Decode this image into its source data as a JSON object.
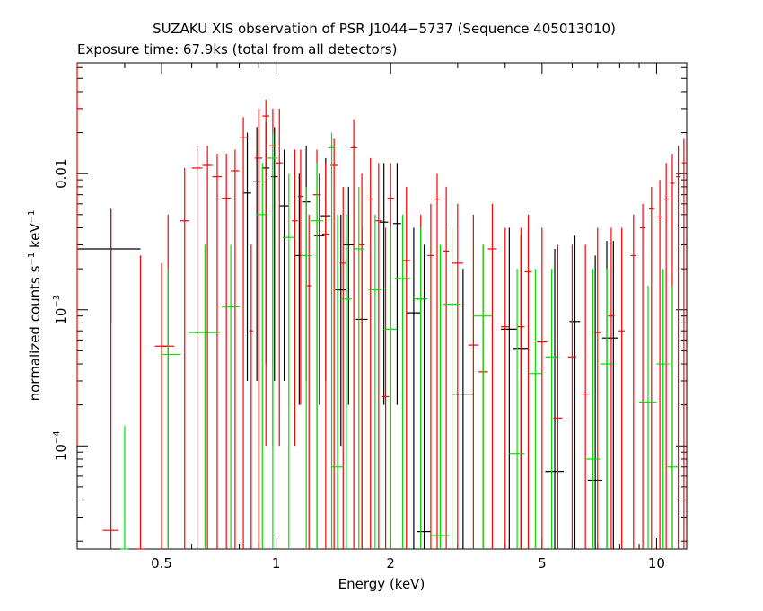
{
  "chart_data": {
    "type": "scatter",
    "title": "SUZAKU XIS observation of PSR J1044−5737 (Sequence 405013010)",
    "subtitle": "Exposure time: 67.9ks (total from all detectors)",
    "xlabel": "Energy (keV)",
    "ylabel_main": "normalized counts s",
    "ylabel_unit": "keV",
    "ylabel_exp": "−1",
    "x_scale": "log",
    "y_scale": "log",
    "xlim": [
      0.3,
      12.0
    ],
    "ylim": [
      1.75e-05,
      0.065
    ],
    "x_ticks": [
      {
        "value": 0.5,
        "label": "0.5"
      },
      {
        "value": 1,
        "label": "1"
      },
      {
        "value": 2,
        "label": "2"
      },
      {
        "value": 5,
        "label": "5"
      },
      {
        "value": 10,
        "label": "10"
      }
    ],
    "y_ticks": [
      {
        "value": 0.0001,
        "mant": "10",
        "exp": "−4"
      },
      {
        "value": 0.001,
        "mant": "10",
        "exp": "−3"
      },
      {
        "value": 0.01,
        "mant": "0.01",
        "exp": ""
      }
    ],
    "grid": false,
    "series": [
      {
        "color": "#000000",
        "points": [
          [
            0.368,
            0.0028,
            0.3,
            0.44,
            0.0008,
            0.0055
          ],
          [
            0.84,
            0.0072,
            0.82,
            0.86,
            0.0003,
            0.02
          ],
          [
            0.89,
            0.0087,
            0.87,
            0.91,
            0.0003,
            0.022
          ],
          [
            0.94,
            0.011,
            0.92,
            0.96,
            0.0004,
            0.024
          ],
          [
            0.99,
            0.0095,
            0.97,
            1.01,
            0.0003,
            0.022
          ],
          [
            1.05,
            0.0058,
            1.02,
            1.08,
            0.0003,
            0.015
          ],
          [
            1.15,
            0.0025,
            1.12,
            1.18,
            0.0002,
            0.01
          ],
          [
            1.2,
            0.0062,
            1.17,
            1.23,
            0.0003,
            0.016
          ],
          [
            1.3,
            0.0035,
            1.26,
            1.34,
            0.0002,
            0.01
          ],
          [
            1.35,
            0.0049,
            1.31,
            1.39,
            0.0003,
            0.013
          ],
          [
            1.48,
            0.0014,
            1.43,
            1.53,
            0.0001,
            0.005
          ],
          [
            1.55,
            0.003,
            1.5,
            1.6,
            0.0002,
            0.008
          ],
          [
            1.68,
            0.00085,
            1.62,
            1.74,
            1.75e-05,
            0.004
          ],
          [
            1.92,
            0.0044,
            1.87,
            1.97,
            0.0002,
            0.012
          ],
          [
            2.08,
            0.0043,
            2.03,
            2.13,
            0.0002,
            0.012
          ],
          [
            2.3,
            0.00095,
            2.2,
            2.4,
            1.75e-05,
            0.004
          ],
          [
            2.45,
            2.35e-05,
            2.35,
            2.55,
            1.75e-05,
            0.003
          ],
          [
            3.1,
            0.00024,
            2.9,
            3.3,
            1.75e-05,
            0.002
          ],
          [
            4.1,
            0.00072,
            3.9,
            4.3,
            1.75e-05,
            0.004
          ],
          [
            4.4,
            0.00052,
            4.2,
            4.6,
            1.75e-05,
            0.0035
          ],
          [
            5.4,
            6.5e-05,
            5.1,
            5.7,
            1.75e-05,
            0.0028
          ],
          [
            6.1,
            0.00082,
            5.9,
            6.3,
            1.75e-05,
            0.0035
          ],
          [
            6.9,
            5.6e-05,
            6.6,
            7.2,
            1.75e-05,
            0.0025
          ],
          [
            7.4,
            0.00062,
            7.2,
            7.6,
            1.75e-05,
            0.0032
          ],
          [
            7.7,
            0.00062,
            7.5,
            7.9,
            1.75e-05,
            0.0032
          ]
        ]
      },
      {
        "color": "#ff0000",
        "points": [
          [
            0.3,
            0.03,
            0.3,
            0.31,
            0.0001,
            0.065
          ],
          [
            0.368,
            2.4e-05,
            0.35,
            0.385,
            1.75e-05,
            0.0055
          ],
          [
            0.44,
            1.75e-05,
            0.43,
            0.45,
            1.75e-05,
            0.0025
          ],
          [
            0.5,
            0.00054,
            0.48,
            0.52,
            1.75e-05,
            0.0022
          ],
          [
            0.52,
            0.00054,
            0.5,
            0.54,
            1.75e-05,
            0.005
          ],
          [
            0.575,
            0.0045,
            0.56,
            0.59,
            1.75e-05,
            0.011
          ],
          [
            0.62,
            0.011,
            0.6,
            0.64,
            1.75e-05,
            0.016
          ],
          [
            0.66,
            0.0115,
            0.64,
            0.68,
            1.75e-05,
            0.016
          ],
          [
            0.7,
            0.0095,
            0.68,
            0.72,
            1.75e-05,
            0.014
          ],
          [
            0.74,
            0.0066,
            0.72,
            0.76,
            1.75e-05,
            0.014
          ],
          [
            0.78,
            0.0105,
            0.76,
            0.8,
            1.75e-05,
            0.015
          ],
          [
            0.82,
            0.0185,
            0.8,
            0.84,
            1.75e-05,
            0.026
          ],
          [
            0.86,
            0.0007,
            0.85,
            0.87,
            1.75e-05,
            0.003
          ],
          [
            0.9,
            0.013,
            0.88,
            0.92,
            1.75e-05,
            0.03
          ],
          [
            0.94,
            0.0265,
            0.92,
            0.96,
            0.0001,
            0.035
          ],
          [
            0.98,
            0.016,
            0.96,
            1.0,
            0.0001,
            0.03
          ],
          [
            1.02,
            0.012,
            1.0,
            1.04,
            0.0001,
            0.03
          ],
          [
            1.12,
            0.0045,
            1.1,
            1.14,
            0.0001,
            0.015
          ],
          [
            1.16,
            0.0068,
            1.14,
            1.18,
            0.0002,
            0.015
          ],
          [
            1.22,
            0.0015,
            1.2,
            1.24,
            1.75e-05,
            0.005
          ],
          [
            1.28,
            0.007,
            1.25,
            1.31,
            1.75e-05,
            0.015
          ],
          [
            1.35,
            0.0036,
            1.32,
            1.38,
            1.75e-05,
            0.012
          ],
          [
            1.42,
            0.0115,
            1.39,
            1.45,
            1.75e-05,
            0.018
          ],
          [
            1.5,
            0.0022,
            1.47,
            1.53,
            1.75e-05,
            0.008
          ],
          [
            1.6,
            0.0155,
            1.57,
            1.63,
            1.75e-05,
            0.025
          ],
          [
            1.68,
            0.003,
            1.65,
            1.71,
            1.75e-05,
            0.01
          ],
          [
            1.77,
            0.0065,
            1.74,
            1.8,
            1.75e-05,
            0.013
          ],
          [
            1.86,
            0.0045,
            1.82,
            1.9,
            1.75e-05,
            0.012
          ],
          [
            1.94,
            0.00023,
            1.9,
            1.98,
            1.75e-05,
            0.004
          ],
          [
            2.0,
            0.0066,
            1.96,
            2.04,
            1.75e-05,
            0.012
          ],
          [
            2.2,
            0.0023,
            2.15,
            2.25,
            1.75e-05,
            0.008
          ],
          [
            2.4,
            0.0012,
            2.35,
            2.45,
            1.75e-05,
            0.005
          ],
          [
            2.55,
            0.0025,
            2.5,
            2.6,
            1.75e-05,
            0.006
          ],
          [
            2.65,
            0.0065,
            2.6,
            2.7,
            1.75e-05,
            0.01
          ],
          [
            2.8,
            0.0027,
            2.75,
            2.85,
            1.75e-05,
            0.008
          ],
          [
            3.0,
            0.0022,
            2.9,
            3.1,
            1.75e-05,
            0.006
          ],
          [
            3.3,
            0.00055,
            3.2,
            3.4,
            1.75e-05,
            0.005
          ],
          [
            3.5,
            0.00035,
            3.4,
            3.6,
            1.75e-05,
            0.003
          ],
          [
            3.7,
            0.0028,
            3.6,
            3.8,
            1.75e-05,
            0.006
          ],
          [
            4.0,
            0.00075,
            3.9,
            4.1,
            1.75e-05,
            0.004
          ],
          [
            4.4,
            0.00075,
            4.3,
            4.5,
            1.75e-05,
            0.004
          ],
          [
            4.6,
            0.0019,
            4.5,
            4.7,
            1.75e-05,
            0.005
          ],
          [
            5.0,
            0.00058,
            4.85,
            5.15,
            1.75e-05,
            0.004
          ],
          [
            5.5,
            0.00016,
            5.35,
            5.65,
            1.75e-05,
            0.003
          ],
          [
            6.0,
            0.00045,
            5.85,
            6.15,
            1.75e-05,
            0.003
          ],
          [
            6.5,
            0.00024,
            6.35,
            6.65,
            1.75e-05,
            0.003
          ],
          [
            7.0,
            0.00068,
            6.85,
            7.15,
            1.75e-05,
            0.004
          ],
          [
            7.6,
            0.0009,
            7.45,
            7.75,
            1.75e-05,
            0.004
          ],
          [
            8.1,
            0.0007,
            7.95,
            8.25,
            1.75e-05,
            0.004
          ],
          [
            8.7,
            0.0025,
            8.55,
            8.85,
            1.75e-05,
            0.005
          ],
          [
            9.2,
            0.004,
            9.05,
            9.35,
            1.75e-05,
            0.006
          ],
          [
            9.7,
            0.0055,
            9.55,
            9.85,
            1.75e-05,
            0.008
          ],
          [
            10.2,
            0.0048,
            10.05,
            10.35,
            1.75e-05,
            0.009
          ],
          [
            10.6,
            0.0065,
            10.45,
            10.75,
            1.75e-05,
            0.012
          ],
          [
            11.0,
            0.0085,
            10.85,
            11.15,
            1.75e-05,
            0.014
          ],
          [
            11.4,
            0.0095,
            11.25,
            11.55,
            1.75e-05,
            0.016
          ],
          [
            11.8,
            0.012,
            11.65,
            11.95,
            1.75e-05,
            0.018
          ]
        ]
      },
      {
        "color": "#00e000",
        "points": [
          [
            0.4,
            1.75e-05,
            0.39,
            0.41,
            1.75e-05,
            0.00014
          ],
          [
            0.52,
            0.00047,
            0.5,
            0.56,
            1.75e-05,
            0.002
          ],
          [
            0.65,
            0.00068,
            0.59,
            0.71,
            1.75e-05,
            0.003
          ],
          [
            0.76,
            0.00105,
            0.72,
            0.8,
            1.75e-05,
            0.003
          ],
          [
            0.92,
            0.005,
            0.89,
            0.95,
            1.75e-05,
            0.012
          ],
          [
            0.98,
            0.013,
            0.95,
            1.01,
            1.75e-05,
            0.02
          ],
          [
            1.08,
            0.0034,
            1.04,
            1.12,
            1.75e-05,
            0.01
          ],
          [
            1.2,
            0.0025,
            1.16,
            1.24,
            1.75e-05,
            0.008
          ],
          [
            1.28,
            0.0045,
            1.23,
            1.33,
            1.75e-05,
            0.012
          ],
          [
            1.4,
            0.0155,
            1.37,
            1.43,
            1.75e-05,
            0.02
          ],
          [
            1.45,
            7e-05,
            1.4,
            1.5,
            1.75e-05,
            0.005
          ],
          [
            1.53,
            0.0012,
            1.48,
            1.58,
            1.75e-05,
            0.005
          ],
          [
            1.65,
            0.0028,
            1.6,
            1.7,
            1.75e-05,
            0.008
          ],
          [
            1.82,
            0.0014,
            1.75,
            1.89,
            1.75e-05,
            0.005
          ],
          [
            2.0,
            0.00072,
            1.92,
            2.08,
            1.75e-05,
            0.004
          ],
          [
            2.15,
            0.0017,
            2.05,
            2.25,
            1.75e-05,
            0.005
          ],
          [
            2.4,
            0.0012,
            2.3,
            2.5,
            1.75e-05,
            0.004
          ],
          [
            2.7,
            2.2e-05,
            2.55,
            2.85,
            1.75e-05,
            0.003
          ],
          [
            2.9,
            0.0011,
            2.75,
            3.05,
            1.75e-05,
            0.004
          ],
          [
            3.5,
            0.0009,
            3.3,
            3.7,
            1.75e-05,
            0.003
          ],
          [
            4.3,
            8.8e-05,
            4.1,
            4.5,
            1.75e-05,
            0.002
          ],
          [
            4.8,
            0.00034,
            4.6,
            5.0,
            1.75e-05,
            0.002
          ],
          [
            5.3,
            0.00045,
            5.1,
            5.5,
            1.75e-05,
            0.002
          ],
          [
            6.8,
            8e-05,
            6.5,
            7.1,
            1.75e-05,
            0.002
          ],
          [
            7.4,
            0.0004,
            7.1,
            7.7,
            1.75e-05,
            0.002
          ],
          [
            9.5,
            0.00021,
            9.0,
            10.0,
            1.75e-05,
            0.0015
          ],
          [
            10.4,
            0.0004,
            10.0,
            10.8,
            1.75e-05,
            0.002
          ],
          [
            11.0,
            7e-05,
            10.6,
            11.4,
            1.75e-05,
            0.0015
          ]
        ]
      }
    ]
  }
}
